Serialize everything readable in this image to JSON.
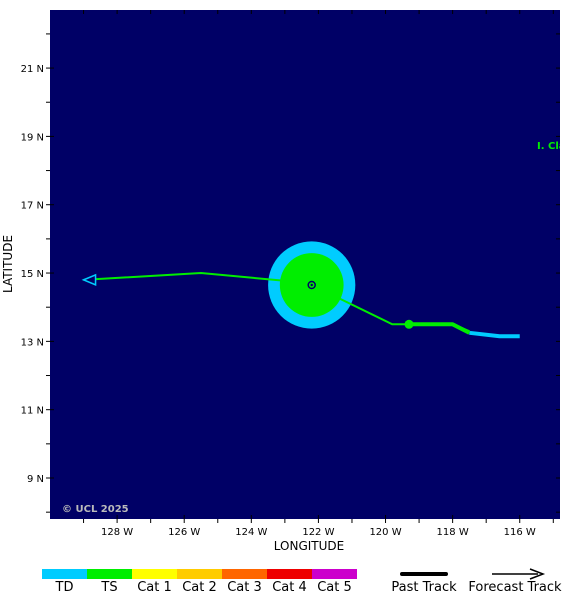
{
  "axes": {
    "xlabel": "LONGITUDE",
    "ylabel": "LATITUDE",
    "x_ticks": [
      "128 W",
      "126 W",
      "124 W",
      "122 W",
      "120 W",
      "118 W",
      "116 W"
    ],
    "y_ticks": [
      "21 N",
      "19 N",
      "17 N",
      "15 N",
      "13 N",
      "11 N",
      "9 N"
    ],
    "lon_range": [
      -130.0,
      -114.8
    ],
    "lat_range": [
      7.8,
      22.7
    ],
    "ocean_color": "#000066"
  },
  "map": {
    "storm_label": "I. Cla",
    "watermark": "© UCL 2025",
    "storm_center": [
      -122.2,
      14.65
    ],
    "wind_radii": [
      {
        "category": "TD",
        "radius_deg": 1.3,
        "color": "#00ccff"
      },
      {
        "category": "TS",
        "radius_deg": 0.95,
        "color": "#00ee00"
      }
    ],
    "past_track": [
      {
        "points": [
          [
            -116.0,
            13.15
          ],
          [
            -116.6,
            13.15
          ],
          [
            -117.5,
            13.25
          ]
        ],
        "color": "#00ccff"
      },
      {
        "points": [
          [
            -117.5,
            13.25
          ],
          [
            -118.0,
            13.5
          ],
          [
            -119.3,
            13.5
          ]
        ],
        "color": "#00ee00"
      }
    ],
    "past_position_marker": [
      -119.3,
      13.5
    ],
    "forecast_track": [
      [
        -122.2,
        14.65
      ],
      [
        -119.8,
        13.5
      ],
      [
        -118.0,
        13.5
      ],
      [
        -117.5,
        13.3
      ]
    ],
    "forecast_track_to_west": [
      [
        -122.2,
        14.7
      ],
      [
        -125.5,
        15.0
      ],
      [
        -129.0,
        14.8
      ]
    ],
    "track_color": "#00ee00"
  },
  "legend": {
    "categories": [
      {
        "label": "TD",
        "color": "#00ccff"
      },
      {
        "label": "TS",
        "color": "#00ee00"
      },
      {
        "label": "Cat 1",
        "color": "#ffff00"
      },
      {
        "label": "Cat 2",
        "color": "#ffcc00"
      },
      {
        "label": "Cat 3",
        "color": "#ff6600"
      },
      {
        "label": "Cat 4",
        "color": "#ee0000"
      },
      {
        "label": "Cat 5",
        "color": "#cc00cc"
      }
    ],
    "past_track_label": "Past Track",
    "forecast_track_label": "Forecast Track"
  }
}
